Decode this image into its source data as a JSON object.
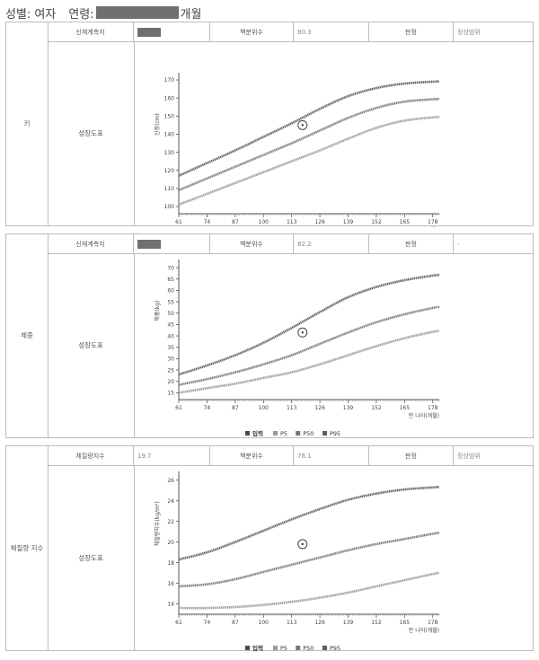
{
  "header": {
    "sex_label": "성별:",
    "sex_value": "여자",
    "age_label": "연령:",
    "age_suffix": "개월"
  },
  "legend": {
    "input": "입력"
  },
  "sections": [
    {
      "label": "키",
      "row1": {
        "c1": "신체계측치",
        "c2": "",
        "c3": "백분위수",
        "c4": "80.3",
        "c5": "판정",
        "c6": "정상범위"
      },
      "row2": "성장도표",
      "chart_data": {
        "type": "line",
        "ylabel": "신장(cm)",
        "xlabel": "만 나이(개월)",
        "xticks": [
          61,
          74,
          87,
          100,
          113,
          126,
          139,
          152,
          165,
          178
        ],
        "xlim": [
          61,
          181
        ],
        "yticks": [
          100,
          110,
          120,
          130,
          140,
          150,
          160,
          170
        ],
        "ylim": [
          96,
          172
        ],
        "marker": {
          "x": 118,
          "y": 145
        },
        "x": [
          61,
          74,
          87,
          100,
          113,
          126,
          139,
          152,
          165,
          178,
          181
        ],
        "series": [
          {
            "name": "P3",
            "values": [
              101,
              107,
              113,
              119,
              125,
              131,
              137.5,
              143.5,
              147.5,
              149.3,
              149.5
            ]
          },
          {
            "name": "P50",
            "values": [
              109,
              115.5,
              122,
              128.5,
              135,
              142,
              149,
              154.5,
              158,
              159.3,
              159.5
            ]
          },
          {
            "name": "P97",
            "values": [
              117,
              124,
              131,
              138.5,
              146,
              154,
              161,
              165.5,
              168,
              169,
              169.2
            ]
          }
        ],
        "colors": {
          "P3": "#9b9b9b",
          "P50": "#777777",
          "P97": "#5e5e5e",
          "input": "#4a4a4a"
        }
      }
    },
    {
      "label": "체중",
      "row1": {
        "c1": "신체계측치",
        "c2": "",
        "c3": "백분위수",
        "c4": "82.2",
        "c5": "판정",
        "c6": "-"
      },
      "row2": "성장도표",
      "chart_data": {
        "type": "line",
        "ylabel": "체중(kg)",
        "xlabel": "만 나이(개월)",
        "xticks": [
          61,
          74,
          87,
          100,
          113,
          126,
          139,
          152,
          165,
          178
        ],
        "xlim": [
          61,
          181
        ],
        "yticks": [
          15,
          20,
          25,
          30,
          35,
          40,
          45,
          50,
          55,
          60,
          65,
          70
        ],
        "ylim": [
          12,
          72
        ],
        "marker": {
          "x": 118,
          "y": 41.5
        },
        "x": [
          61,
          74,
          87,
          100,
          113,
          126,
          139,
          152,
          165,
          178,
          181
        ],
        "series": [
          {
            "name": "P5",
            "values": [
              15,
              17,
              19,
              21.5,
              24,
              27.5,
              31.5,
              35.5,
              39,
              41.8,
              42.2
            ]
          },
          {
            "name": "P50",
            "values": [
              18.5,
              21,
              24,
              27.5,
              31.5,
              36.5,
              41.5,
              46,
              49.5,
              52.3,
              52.8
            ]
          },
          {
            "name": "P95",
            "values": [
              23,
              27,
              31.5,
              37,
              43.5,
              50.5,
              57,
              61.5,
              64.5,
              66.5,
              66.8
            ]
          }
        ],
        "colors": {
          "P5": "#9b9b9b",
          "P50": "#777777",
          "P95": "#5e5e5e",
          "input": "#4a4a4a"
        }
      }
    },
    {
      "label": "체질량 지수",
      "row1": {
        "c1": "체질량지수",
        "c2": "19.7",
        "c3": "백분위수",
        "c4": "76.1",
        "c5": "판정",
        "c6": "정상범위"
      },
      "row2": "성장도표",
      "chart_data": {
        "type": "line",
        "ylabel": "체질량지수(kg/m²)",
        "xlabel": "만 나이(개월)",
        "xticks": [
          61,
          74,
          87,
          100,
          113,
          126,
          139,
          152,
          165,
          178
        ],
        "xlim": [
          61,
          181
        ],
        "yticks": [
          14,
          16,
          18,
          20,
          22,
          24,
          26
        ],
        "ylim": [
          13,
          26.5
        ],
        "marker": {
          "x": 118,
          "y": 19.8
        },
        "x": [
          61,
          74,
          87,
          100,
          113,
          126,
          139,
          152,
          165,
          178,
          181
        ],
        "series": [
          {
            "name": "P5",
            "values": [
              13.6,
              13.6,
              13.7,
              13.9,
              14.2,
              14.6,
              15.1,
              15.7,
              16.3,
              16.9,
              17.0
            ]
          },
          {
            "name": "P50",
            "values": [
              15.7,
              15.9,
              16.4,
              17.1,
              17.8,
              18.5,
              19.2,
              19.8,
              20.3,
              20.8,
              20.9
            ]
          },
          {
            "name": "P95",
            "values": [
              18.3,
              19.0,
              20.0,
              21.1,
              22.2,
              23.2,
              24.1,
              24.7,
              25.1,
              25.3,
              25.35
            ]
          }
        ],
        "colors": {
          "P5": "#9b9b9b",
          "P50": "#777777",
          "P95": "#5e5e5e",
          "input": "#4a4a4a"
        }
      }
    }
  ]
}
